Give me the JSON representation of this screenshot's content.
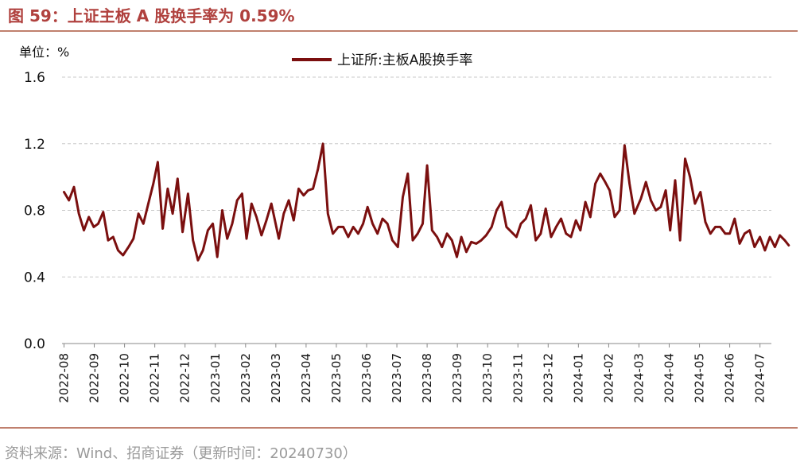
{
  "header": {
    "title": "图 59：上证主板 A 股换手率为 0.59%"
  },
  "unit_label": "单位：%",
  "source_note": "资料来源：Wind、招商证券（更新时间：20240730）",
  "chart_data": {
    "type": "line",
    "title": "上证主板 A 股换手率为 0.59%",
    "xlabel": "",
    "ylabel": "单位：%",
    "ylim": [
      0.0,
      1.6
    ],
    "yticks": [
      "0.0",
      "0.4",
      "0.8",
      "1.2",
      "1.6"
    ],
    "grid": "horizontal dashed",
    "legend_position": "top-center",
    "line_color": "#7b0f0f",
    "x_tick_labels": [
      "2022-08",
      "2022-09",
      "2022-10",
      "2022-11",
      "2022-12",
      "2023-01",
      "2023-02",
      "2023-03",
      "2023-04",
      "2023-05",
      "2023-06",
      "2023-07",
      "2023-08",
      "2023-09",
      "2023-10",
      "2023-11",
      "2023-12",
      "2024-01",
      "2024-02",
      "2024-03",
      "2024-04",
      "2024-05",
      "2024-06",
      "2024-07"
    ],
    "series": [
      {
        "name": "上证所:主板A股换手率",
        "x": [
          "2022-08-01",
          "2022-08-06",
          "2022-08-11",
          "2022-08-16",
          "2022-08-21",
          "2022-08-26",
          "2022-08-31",
          "2022-09-05",
          "2022-09-10",
          "2022-09-15",
          "2022-09-20",
          "2022-09-25",
          "2022-09-30",
          "2022-10-05",
          "2022-10-10",
          "2022-10-15",
          "2022-10-20",
          "2022-10-25",
          "2022-10-30",
          "2022-11-04",
          "2022-11-09",
          "2022-11-14",
          "2022-11-19",
          "2022-11-24",
          "2022-11-29",
          "2022-12-04",
          "2022-12-09",
          "2022-12-14",
          "2022-12-19",
          "2022-12-24",
          "2022-12-29",
          "2023-01-03",
          "2023-01-08",
          "2023-01-13",
          "2023-01-18",
          "2023-01-23",
          "2023-01-28",
          "2023-02-02",
          "2023-02-07",
          "2023-02-12",
          "2023-02-17",
          "2023-02-22",
          "2023-02-27",
          "2023-03-04",
          "2023-03-09",
          "2023-03-14",
          "2023-03-19",
          "2023-03-24",
          "2023-03-29",
          "2023-04-03",
          "2023-04-08",
          "2023-04-13",
          "2023-04-18",
          "2023-04-23",
          "2023-04-28",
          "2023-05-03",
          "2023-05-08",
          "2023-05-13",
          "2023-05-18",
          "2023-05-23",
          "2023-05-28",
          "2023-06-02",
          "2023-06-07",
          "2023-06-12",
          "2023-06-17",
          "2023-06-22",
          "2023-06-27",
          "2023-07-02",
          "2023-07-07",
          "2023-07-12",
          "2023-07-17",
          "2023-07-22",
          "2023-07-27",
          "2023-08-01",
          "2023-08-06",
          "2023-08-11",
          "2023-08-16",
          "2023-08-21",
          "2023-08-26",
          "2023-08-31",
          "2023-09-05",
          "2023-09-10",
          "2023-09-15",
          "2023-09-20",
          "2023-09-25",
          "2023-09-30",
          "2023-10-05",
          "2023-10-10",
          "2023-10-15",
          "2023-10-20",
          "2023-10-25",
          "2023-10-30",
          "2023-11-04",
          "2023-11-09",
          "2023-11-14",
          "2023-11-19",
          "2023-11-24",
          "2023-11-29",
          "2023-12-04",
          "2023-12-09",
          "2023-12-14",
          "2023-12-19",
          "2023-12-24",
          "2023-12-29",
          "2024-01-03",
          "2024-01-08",
          "2024-01-13",
          "2024-01-18",
          "2024-01-23",
          "2024-01-28",
          "2024-02-02",
          "2024-02-07",
          "2024-02-12",
          "2024-02-17",
          "2024-02-22",
          "2024-02-27",
          "2024-03-03",
          "2024-03-08",
          "2024-03-13",
          "2024-03-18",
          "2024-03-23",
          "2024-03-28",
          "2024-04-02",
          "2024-04-07",
          "2024-04-12",
          "2024-04-17",
          "2024-04-22",
          "2024-04-27",
          "2024-05-02",
          "2024-05-07",
          "2024-05-12",
          "2024-05-17",
          "2024-05-22",
          "2024-05-27",
          "2024-06-01",
          "2024-06-06",
          "2024-06-11",
          "2024-06-16",
          "2024-06-21",
          "2024-06-26",
          "2024-07-01",
          "2024-07-06",
          "2024-07-11",
          "2024-07-16",
          "2024-07-21",
          "2024-07-26",
          "2024-07-30"
        ],
        "values": [
          0.91,
          0.86,
          0.94,
          0.78,
          0.68,
          0.76,
          0.7,
          0.72,
          0.79,
          0.62,
          0.64,
          0.56,
          0.53,
          0.58,
          0.63,
          0.78,
          0.72,
          0.84,
          0.96,
          1.09,
          0.69,
          0.93,
          0.78,
          0.99,
          0.67,
          0.9,
          0.62,
          0.5,
          0.56,
          0.68,
          0.72,
          0.52,
          0.8,
          0.63,
          0.72,
          0.86,
          0.9,
          0.63,
          0.84,
          0.76,
          0.65,
          0.74,
          0.84,
          0.63,
          0.78,
          0.86,
          0.74,
          0.93,
          0.89,
          0.92,
          0.93,
          1.05,
          1.2,
          0.78,
          0.66,
          0.7,
          0.7,
          0.64,
          0.7,
          0.66,
          0.72,
          0.82,
          0.72,
          0.66,
          0.75,
          0.72,
          0.62,
          0.58,
          0.88,
          1.02,
          0.62,
          0.66,
          0.72,
          1.07,
          0.68,
          0.64,
          0.58,
          0.66,
          0.62,
          0.52,
          0.64,
          0.55,
          0.61,
          0.6,
          0.62,
          0.65,
          0.7,
          0.8,
          0.85,
          0.7,
          0.67,
          0.64,
          0.72,
          0.75,
          0.83,
          0.62,
          0.66,
          0.81,
          0.64,
          0.7,
          0.75,
          0.66,
          0.64,
          0.74,
          0.68,
          0.85,
          0.76,
          0.96,
          1.02,
          0.97,
          0.92,
          0.76,
          0.8,
          1.19,
          0.96,
          0.78,
          0.87,
          0.97,
          0.86,
          0.8,
          0.82,
          0.92,
          0.68,
          0.98,
          0.62,
          1.11,
          1.0,
          0.84,
          0.91,
          0.73,
          0.66,
          0.7,
          0.7,
          0.66,
          0.66,
          0.75,
          0.6,
          0.66,
          0.68,
          0.58,
          0.64,
          0.56,
          0.64,
          0.58,
          0.65,
          0.62,
          0.59
        ]
      }
    ]
  }
}
